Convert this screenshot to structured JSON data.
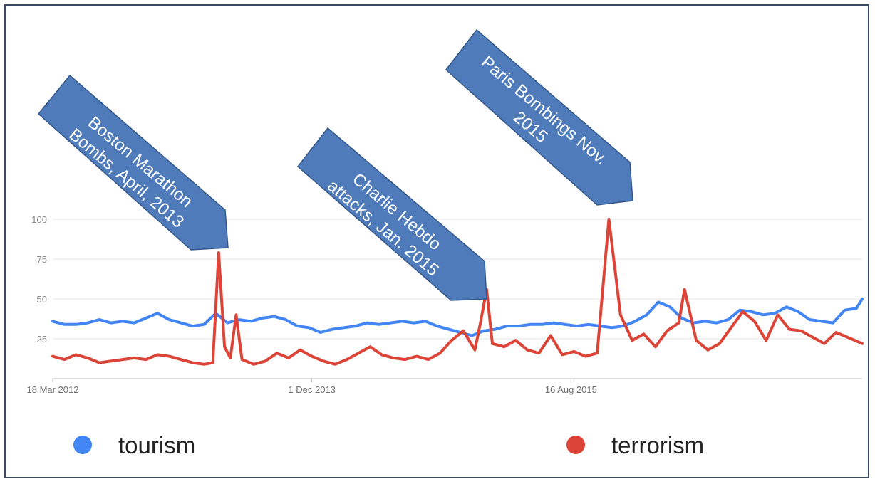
{
  "chart_data": {
    "type": "line",
    "x_tick_labels": [
      "18 Mar 2012",
      "1 Dec 2013",
      "16 Aug 2015"
    ],
    "y_tick_labels": [
      "25",
      "50",
      "75",
      "100"
    ],
    "ylim": [
      0,
      100
    ],
    "grid": true,
    "legend_position": "bottom",
    "series": [
      {
        "name": "tourism",
        "color": "#4285f4",
        "points": [
          [
            "2012-03-18",
            36
          ],
          [
            "2012-04-15",
            34
          ],
          [
            "2012-05-13",
            34
          ],
          [
            "2012-06-10",
            35
          ],
          [
            "2012-07-08",
            37
          ],
          [
            "2012-08-05",
            35
          ],
          [
            "2012-09-02",
            36
          ],
          [
            "2012-09-30",
            35
          ],
          [
            "2012-10-28",
            38
          ],
          [
            "2012-11-25",
            41
          ],
          [
            "2012-12-23",
            37
          ],
          [
            "2013-01-20",
            35
          ],
          [
            "2013-02-17",
            33
          ],
          [
            "2013-03-17",
            34
          ],
          [
            "2013-04-14",
            41
          ],
          [
            "2013-05-12",
            35
          ],
          [
            "2013-06-09",
            37
          ],
          [
            "2013-07-07",
            36
          ],
          [
            "2013-08-04",
            38
          ],
          [
            "2013-09-01",
            39
          ],
          [
            "2013-09-29",
            37
          ],
          [
            "2013-10-27",
            33
          ],
          [
            "2013-11-24",
            32
          ],
          [
            "2013-12-22",
            29
          ],
          [
            "2014-01-19",
            31
          ],
          [
            "2014-02-16",
            32
          ],
          [
            "2014-03-16",
            33
          ],
          [
            "2014-04-13",
            35
          ],
          [
            "2014-05-11",
            34
          ],
          [
            "2014-06-08",
            35
          ],
          [
            "2014-07-06",
            36
          ],
          [
            "2014-08-03",
            35
          ],
          [
            "2014-08-31",
            36
          ],
          [
            "2014-09-28",
            33
          ],
          [
            "2014-10-26",
            31
          ],
          [
            "2014-11-23",
            29
          ],
          [
            "2014-12-21",
            27
          ],
          [
            "2015-01-18",
            30
          ],
          [
            "2015-02-15",
            31
          ],
          [
            "2015-03-15",
            33
          ],
          [
            "2015-04-12",
            33
          ],
          [
            "2015-05-10",
            34
          ],
          [
            "2015-06-07",
            34
          ],
          [
            "2015-07-05",
            35
          ],
          [
            "2015-08-02",
            34
          ],
          [
            "2015-08-30",
            33
          ],
          [
            "2015-09-27",
            34
          ],
          [
            "2015-10-25",
            33
          ],
          [
            "2015-11-22",
            32
          ],
          [
            "2015-12-20",
            33
          ],
          [
            "2016-01-17",
            36
          ],
          [
            "2016-02-14",
            40
          ],
          [
            "2016-03-13",
            48
          ],
          [
            "2016-04-10",
            45
          ],
          [
            "2016-05-08",
            38
          ],
          [
            "2016-06-05",
            35
          ],
          [
            "2016-07-03",
            36
          ],
          [
            "2016-07-31",
            35
          ],
          [
            "2016-08-28",
            37
          ],
          [
            "2016-09-25",
            43
          ],
          [
            "2016-10-23",
            42
          ],
          [
            "2016-11-20",
            40
          ],
          [
            "2016-12-18",
            41
          ],
          [
            "2017-01-15",
            45
          ],
          [
            "2017-02-12",
            42
          ],
          [
            "2017-03-12",
            37
          ],
          [
            "2017-04-09",
            36
          ],
          [
            "2017-05-07",
            35
          ],
          [
            "2017-06-04",
            43
          ],
          [
            "2017-07-02",
            44
          ],
          [
            "2017-07-16",
            50
          ]
        ]
      },
      {
        "name": "terrorism",
        "color": "#db4437",
        "points": [
          [
            "2012-03-18",
            14
          ],
          [
            "2012-04-15",
            12
          ],
          [
            "2012-05-13",
            15
          ],
          [
            "2012-06-10",
            13
          ],
          [
            "2012-07-08",
            10
          ],
          [
            "2012-08-05",
            11
          ],
          [
            "2012-09-02",
            12
          ],
          [
            "2012-09-30",
            13
          ],
          [
            "2012-10-28",
            12
          ],
          [
            "2012-11-25",
            15
          ],
          [
            "2012-12-23",
            14
          ],
          [
            "2013-01-20",
            12
          ],
          [
            "2013-02-17",
            10
          ],
          [
            "2013-03-17",
            9
          ],
          [
            "2013-04-07",
            10
          ],
          [
            "2013-04-21",
            79
          ],
          [
            "2013-05-05",
            20
          ],
          [
            "2013-05-19",
            13
          ],
          [
            "2013-06-02",
            40
          ],
          [
            "2013-06-16",
            12
          ],
          [
            "2013-07-14",
            9
          ],
          [
            "2013-08-11",
            11
          ],
          [
            "2013-09-08",
            16
          ],
          [
            "2013-10-06",
            13
          ],
          [
            "2013-11-03",
            18
          ],
          [
            "2013-12-01",
            14
          ],
          [
            "2013-12-29",
            11
          ],
          [
            "2014-01-26",
            9
          ],
          [
            "2014-02-23",
            12
          ],
          [
            "2014-03-23",
            16
          ],
          [
            "2014-04-20",
            20
          ],
          [
            "2014-05-18",
            15
          ],
          [
            "2014-06-15",
            13
          ],
          [
            "2014-07-13",
            12
          ],
          [
            "2014-08-10",
            14
          ],
          [
            "2014-09-07",
            12
          ],
          [
            "2014-10-05",
            16
          ],
          [
            "2014-11-02",
            24
          ],
          [
            "2014-11-30",
            30
          ],
          [
            "2014-12-28",
            18
          ],
          [
            "2015-01-11",
            36
          ],
          [
            "2015-01-25",
            56
          ],
          [
            "2015-02-08",
            22
          ],
          [
            "2015-03-08",
            20
          ],
          [
            "2015-04-05",
            24
          ],
          [
            "2015-05-03",
            18
          ],
          [
            "2015-05-31",
            16
          ],
          [
            "2015-06-28",
            27
          ],
          [
            "2015-07-26",
            15
          ],
          [
            "2015-08-23",
            17
          ],
          [
            "2015-09-20",
            14
          ],
          [
            "2015-10-18",
            16
          ],
          [
            "2015-11-15",
            100
          ],
          [
            "2015-11-29",
            70
          ],
          [
            "2015-12-13",
            40
          ],
          [
            "2016-01-10",
            24
          ],
          [
            "2016-02-07",
            28
          ],
          [
            "2016-03-06",
            20
          ],
          [
            "2016-04-03",
            30
          ],
          [
            "2016-05-01",
            35
          ],
          [
            "2016-05-15",
            56
          ],
          [
            "2016-06-12",
            24
          ],
          [
            "2016-07-10",
            18
          ],
          [
            "2016-08-07",
            22
          ],
          [
            "2016-09-04",
            32
          ],
          [
            "2016-10-02",
            42
          ],
          [
            "2016-10-30",
            36
          ],
          [
            "2016-11-27",
            24
          ],
          [
            "2016-12-25",
            40
          ],
          [
            "2017-01-22",
            31
          ],
          [
            "2017-02-19",
            30
          ],
          [
            "2017-03-19",
            26
          ],
          [
            "2017-04-16",
            22
          ],
          [
            "2017-05-14",
            29
          ],
          [
            "2017-06-11",
            26
          ],
          [
            "2017-07-16",
            22
          ]
        ]
      }
    ],
    "annotations": [
      {
        "text": "Boston Marathon Bombs, April, 2013"
      },
      {
        "text": "Charlie Hebdo attacks, Jan. 2015"
      },
      {
        "text": "Paris Bombings Nov. 2015"
      }
    ]
  },
  "legend": [
    {
      "label": "tourism",
      "color": "#4285f4"
    },
    {
      "label": "terrorism",
      "color": "#db4437"
    }
  ]
}
